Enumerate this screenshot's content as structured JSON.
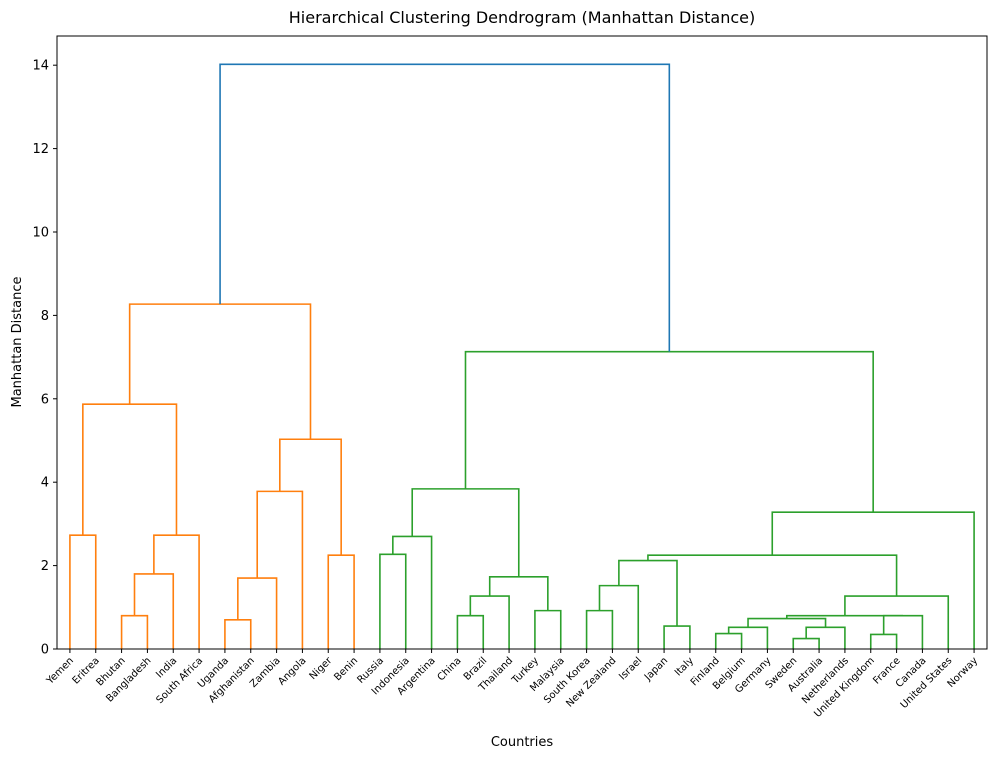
{
  "chart_data": {
    "type": "dendrogram",
    "title": "Hierarchical Clustering Dendrogram (Manhattan Distance)",
    "xlabel": "Countries",
    "ylabel": "Manhattan Distance",
    "ylim": [
      0,
      14.7
    ],
    "yticks": [
      0,
      2,
      4,
      6,
      8,
      10,
      12,
      14
    ],
    "grid": false,
    "colors": {
      "above_threshold": "#1f77b4",
      "cluster_1": "#ff7f0e",
      "cluster_2": "#2ca02c"
    },
    "leaves": [
      "Yemen",
      "Eritrea",
      "Bhutan",
      "Bangladesh",
      "India",
      "South Africa",
      "Uganda",
      "Afghanistan",
      "Zambia",
      "Angola",
      "Niger",
      "Benin",
      "Russia",
      "Indonesia",
      "Argentina",
      "China",
      "Brazil",
      "Thailand",
      "Turkey",
      "Malaysia",
      "South Korea",
      "New Zealand",
      "Israel",
      "Japan",
      "Italy",
      "Finland",
      "Belgium",
      "Germany",
      "Sweden",
      "Australia",
      "Netherlands",
      "United Kingdom",
      "France",
      "Canada",
      "United States",
      "Norway"
    ],
    "merges": [
      {
        "a": "Yemen",
        "b": "Eritrea",
        "height": 2.73,
        "color": "cluster_1"
      },
      {
        "a": "Bhutan",
        "b": "Bangladesh",
        "height": 0.8,
        "color": "cluster_1"
      },
      {
        "a": "Bhutan+Bangladesh",
        "b": "India",
        "height": 1.8,
        "color": "cluster_1"
      },
      {
        "a": "Bhutan+Bangladesh+India",
        "b": "South Africa",
        "height": 2.73,
        "color": "cluster_1"
      },
      {
        "a": "Yemen+Eritrea",
        "b": "Bhutan..South Africa",
        "height": 5.87,
        "color": "cluster_1"
      },
      {
        "a": "Uganda",
        "b": "Afghanistan",
        "height": 0.7,
        "color": "cluster_1"
      },
      {
        "a": "Uganda+Afghanistan",
        "b": "Zambia",
        "height": 1.7,
        "color": "cluster_1"
      },
      {
        "a": "Uganda..Zambia",
        "b": "Angola",
        "height": 3.78,
        "color": "cluster_1"
      },
      {
        "a": "Niger",
        "b": "Benin",
        "height": 2.25,
        "color": "cluster_1"
      },
      {
        "a": "Uganda..Angola",
        "b": "Niger+Benin",
        "height": 5.03,
        "color": "cluster_1"
      },
      {
        "a": "Yemen..South Africa",
        "b": "Uganda..Benin",
        "height": 8.27,
        "color": "cluster_1"
      },
      {
        "a": "Russia",
        "b": "Indonesia",
        "height": 2.27,
        "color": "cluster_2"
      },
      {
        "a": "Russia+Indonesia",
        "b": "Argentina",
        "height": 2.7,
        "color": "cluster_2"
      },
      {
        "a": "China",
        "b": "Brazil",
        "height": 0.8,
        "color": "cluster_2"
      },
      {
        "a": "China+Brazil",
        "b": "Thailand",
        "height": 1.27,
        "color": "cluster_2"
      },
      {
        "a": "Turkey",
        "b": "Malaysia",
        "height": 0.92,
        "color": "cluster_2"
      },
      {
        "a": "China..Thailand",
        "b": "Turkey+Malaysia",
        "height": 1.73,
        "color": "cluster_2"
      },
      {
        "a": "Russia..Argentina",
        "b": "China..Malaysia",
        "height": 3.84,
        "color": "cluster_2"
      },
      {
        "a": "South Korea",
        "b": "New Zealand",
        "height": 0.92,
        "color": "cluster_2"
      },
      {
        "a": "South Korea+New Zealand",
        "b": "Israel",
        "height": 1.52,
        "color": "cluster_2"
      },
      {
        "a": "Japan",
        "b": "Italy",
        "height": 0.55,
        "color": "cluster_2"
      },
      {
        "a": "South Korea..Israel",
        "b": "Japan+Italy",
        "height": 2.12,
        "color": "cluster_2"
      },
      {
        "a": "Finland",
        "b": "Belgium",
        "height": 0.37,
        "color": "cluster_2"
      },
      {
        "a": "Finland+Belgium",
        "b": "Germany",
        "height": 0.52,
        "color": "cluster_2"
      },
      {
        "a": "Sweden",
        "b": "Australia",
        "height": 0.25,
        "color": "cluster_2"
      },
      {
        "a": "Sweden+Australia",
        "b": "Netherlands",
        "height": 0.52,
        "color": "cluster_2"
      },
      {
        "a": "Finland..Germany",
        "b": "Sweden..Netherlands",
        "height": 0.73,
        "color": "cluster_2"
      },
      {
        "a": "United Kingdom",
        "b": "France",
        "height": 0.35,
        "color": "cluster_2"
      },
      {
        "a": "United Kingdom+France",
        "b": "Canada",
        "height": 0.8,
        "color": "cluster_2"
      },
      {
        "a": "Finland..Netherlands",
        "b": "United Kingdom..Canada",
        "height": 0.8,
        "color": "cluster_2"
      },
      {
        "a": "Finland..Canada",
        "b": "United States",
        "height": 1.27,
        "color": "cluster_2"
      },
      {
        "a": "South Korea..Italy",
        "b": "Finland..United States",
        "height": 2.25,
        "color": "cluster_2"
      },
      {
        "a": "South Korea..United States",
        "b": "Norway",
        "height": 3.28,
        "color": "cluster_2"
      },
      {
        "a": "Russia..Malaysia",
        "b": "South Korea..Norway",
        "height": 7.13,
        "color": "cluster_2"
      },
      {
        "a": "Yemen..Benin",
        "b": "Russia..Norway",
        "height": 14.02,
        "color": "above_threshold"
      }
    ]
  }
}
